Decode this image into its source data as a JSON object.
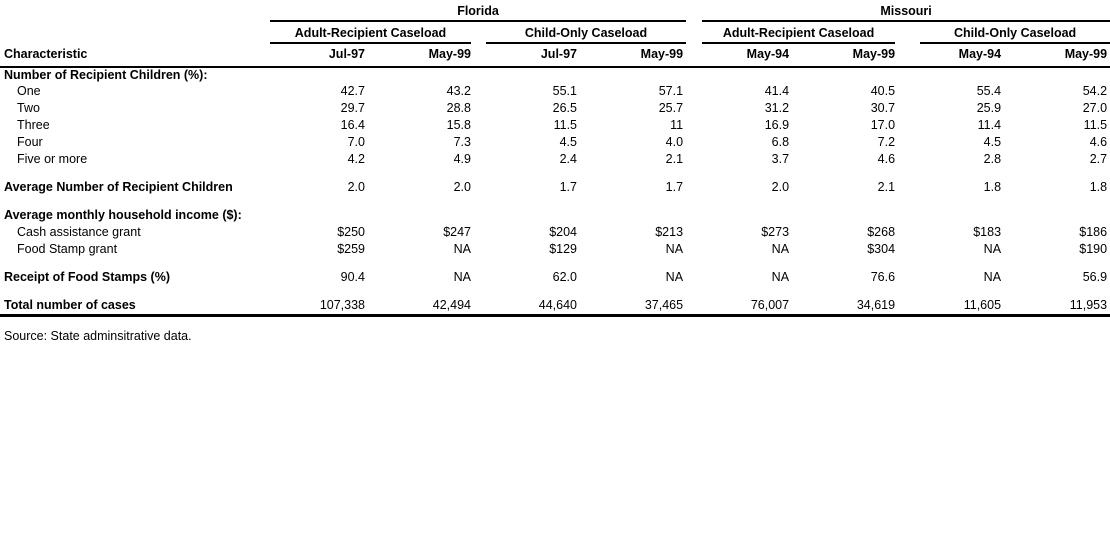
{
  "page": {
    "background": "#ffffff",
    "text_color": "#000000",
    "rule_color": "#000000"
  },
  "table": {
    "characteristic_header": "Characteristic",
    "groups": [
      {
        "label": "Florida",
        "subgroups": [
          {
            "label": "Adult-Recipient Caseload",
            "columns": [
              "Jul-97",
              "May-99"
            ]
          },
          {
            "label": "Child-Only Caseload",
            "columns": [
              "Jul-97",
              "May-99"
            ]
          }
        ]
      },
      {
        "label": "Missouri",
        "subgroups": [
          {
            "label": "Adult-Recipient Caseload",
            "columns": [
              "May-94",
              "May-99"
            ]
          },
          {
            "label": "Child-Only Caseload",
            "columns": [
              "May-94",
              "May-99"
            ]
          }
        ]
      }
    ],
    "column_headers": [
      "Jul-97",
      "May-99",
      "Jul-97",
      "May-99",
      "May-94",
      "May-99",
      "May-94",
      "May-99"
    ],
    "rows": [
      {
        "type": "section",
        "label": "Number of Recipient Children (%):"
      },
      {
        "type": "item",
        "label": "One",
        "values": [
          "42.7",
          "43.2",
          "55.1",
          "57.1",
          "41.4",
          "40.5",
          "55.4",
          "54.2"
        ]
      },
      {
        "type": "item",
        "label": "Two",
        "values": [
          "29.7",
          "28.8",
          "26.5",
          "25.7",
          "31.2",
          "30.7",
          "25.9",
          "27.0"
        ]
      },
      {
        "type": "item",
        "label": "Three",
        "values": [
          "16.4",
          "15.8",
          "11.5",
          "11",
          "16.9",
          "17.0",
          "11.4",
          "11.5"
        ]
      },
      {
        "type": "item",
        "label": "Four",
        "values": [
          "7.0",
          "7.3",
          "4.5",
          "4.0",
          "6.8",
          "7.2",
          "4.5",
          "4.6"
        ]
      },
      {
        "type": "item",
        "label": "Five or more",
        "values": [
          "4.2",
          "4.9",
          "2.4",
          "2.1",
          "3.7",
          "4.6",
          "2.8",
          "2.7"
        ]
      },
      {
        "type": "spacer"
      },
      {
        "type": "bold",
        "label": "Average Number of Recipient Children",
        "values": [
          "2.0",
          "2.0",
          "1.7",
          "1.7",
          "2.0",
          "2.1",
          "1.8",
          "1.8"
        ]
      },
      {
        "type": "spacer"
      },
      {
        "type": "section",
        "label": "Average monthly household income ($):"
      },
      {
        "type": "item",
        "label": "Cash assistance grant",
        "values": [
          "$250",
          "$247",
          "$204",
          "$213",
          "$273",
          "$268",
          "$183",
          "$186"
        ]
      },
      {
        "type": "item",
        "label": "Food Stamp grant",
        "values": [
          "$259",
          "NA",
          "$129",
          "NA",
          "NA",
          "$304",
          "NA",
          "$190"
        ]
      },
      {
        "type": "spacer"
      },
      {
        "type": "bold",
        "label": "Receipt of Food Stamps (%)",
        "values": [
          "90.4",
          "NA",
          "62.0",
          "NA",
          "NA",
          "76.6",
          "NA",
          "56.9"
        ]
      },
      {
        "type": "spacer"
      },
      {
        "type": "total",
        "label": "Total number of cases",
        "values": [
          "107,338",
          "42,494",
          "44,640",
          "37,465",
          "76,007",
          "34,619",
          "11,605",
          "11,953"
        ]
      }
    ],
    "source_note": "Source: State adminsitrative data."
  }
}
